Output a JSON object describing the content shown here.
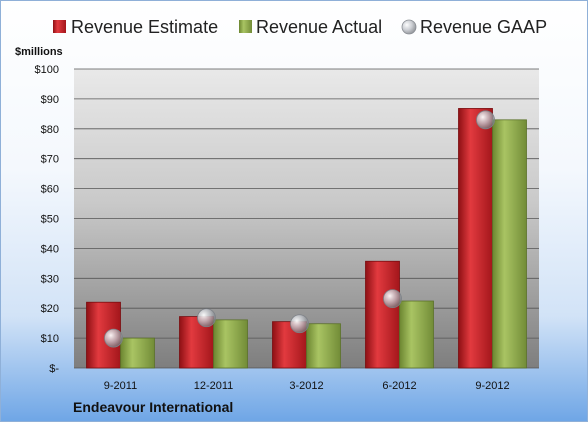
{
  "chart_data": {
    "type": "bar",
    "unit_label": "$millions",
    "company": "Endeavour International",
    "categories": [
      "9-2011",
      "12-2011",
      "3-2012",
      "6-2012",
      "9-2012"
    ],
    "yticks": [
      "$-",
      "$10",
      "$20",
      "$30",
      "$40",
      "$50",
      "$60",
      "$70",
      "$80",
      "$90",
      "$100"
    ],
    "ylim": [
      0,
      100
    ],
    "grid": true,
    "legend_position": "top",
    "series": [
      {
        "name": "Revenue Estimate",
        "kind": "bar",
        "color": "#cc1f25",
        "values": [
          22,
          17.2,
          15.5,
          35.7,
          86.8
        ]
      },
      {
        "name": "Revenue Actual",
        "kind": "bar",
        "color": "#8faa4a",
        "values": [
          10,
          16.1,
          14.8,
          22.4,
          83
        ]
      },
      {
        "name": "Revenue GAAP",
        "kind": "marker",
        "color": "#b8bcc4",
        "values": [
          10,
          16.8,
          14.8,
          23.2,
          83
        ]
      }
    ]
  }
}
